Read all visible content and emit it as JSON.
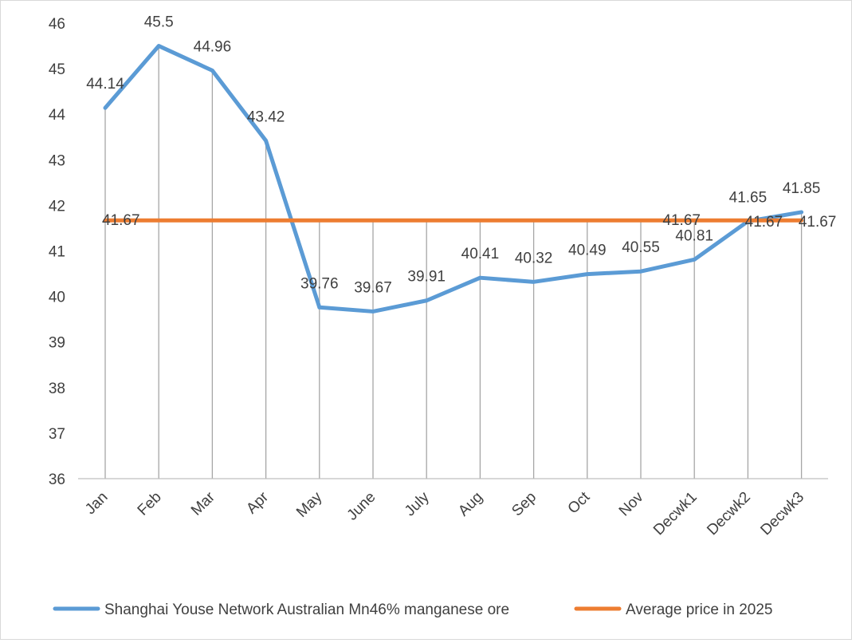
{
  "chart_data": {
    "type": "line",
    "categories": [
      "Jan",
      "Feb",
      "Mar",
      "Apr",
      "May",
      "June",
      "July",
      "Aug",
      "Sep",
      "Oct",
      "Nov",
      "Decwk1",
      "Decwk2",
      "Decwk3"
    ],
    "series": [
      {
        "name": "Shanghai Youse Network Australian Mn46% manganese ore",
        "color": "#5b9bd5",
        "values": [
          44.14,
          45.5,
          44.96,
          43.42,
          39.76,
          39.67,
          39.91,
          40.41,
          40.32,
          40.49,
          40.55,
          40.81,
          41.65,
          41.85
        ],
        "labels": [
          "44.14",
          "45.5",
          "44.96",
          "43.42",
          "39.76",
          "39.67",
          "39.91",
          "40.41",
          "40.32",
          "40.49",
          "40.55",
          "40.81",
          "41.65",
          "41.85"
        ]
      },
      {
        "name": "Average price in 2025",
        "color": "#ed7d31",
        "values": [
          41.67,
          41.67,
          41.67,
          41.67,
          41.67,
          41.67,
          41.67,
          41.67,
          41.67,
          41.67,
          41.67,
          41.67,
          41.67,
          41.67
        ],
        "labels": [
          "41.67",
          "",
          "",
          "",
          "",
          "",
          "",
          "",
          "",
          "",
          "",
          "41.67",
          "41.67",
          "41.67"
        ]
      }
    ],
    "y_ticks": [
      "36",
      "37",
      "38",
      "39",
      "40",
      "41",
      "42",
      "43",
      "44",
      "45",
      "46"
    ],
    "ylim": [
      36,
      46
    ],
    "title": "",
    "xlabel": "",
    "ylabel": "",
    "grid": "vertical",
    "legend_position": "bottom"
  }
}
